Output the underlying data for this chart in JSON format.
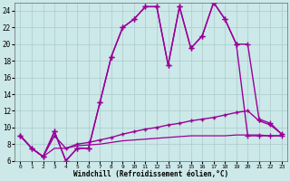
{
  "background_color": "#cce8e8",
  "grid_color": "#aacccc",
  "line_color": "#990099",
  "xlabel": "Windchill (Refroidissement éolien,°C)",
  "xlim": [
    0,
    23
  ],
  "ylim": [
    6,
    25
  ],
  "yticks": [
    6,
    8,
    10,
    12,
    14,
    16,
    18,
    20,
    22,
    24
  ],
  "xticks": [
    0,
    1,
    2,
    3,
    4,
    5,
    6,
    7,
    8,
    9,
    10,
    11,
    12,
    13,
    14,
    15,
    16,
    17,
    18,
    19,
    20,
    21,
    22,
    23
  ],
  "series": [
    {
      "x": [
        0,
        1,
        2,
        3,
        4,
        5,
        6,
        7,
        8,
        9,
        10,
        11,
        12,
        13,
        14,
        15,
        16,
        17,
        18,
        19,
        20,
        21,
        22,
        23
      ],
      "y": [
        9,
        7.5,
        6.5,
        9.5,
        6.0,
        7.5,
        7.5,
        13,
        18.5,
        22,
        23,
        24.5,
        24.5,
        17.5,
        24.5,
        19.5,
        21,
        25,
        23,
        20,
        9,
        9,
        9,
        9
      ],
      "marker": "+",
      "markersize": 4,
      "linewidth": 1.0
    },
    {
      "x": [
        0,
        1,
        2,
        3,
        4,
        5,
        6,
        7,
        8,
        9,
        10,
        11,
        12,
        13,
        14,
        15,
        16,
        17,
        18,
        19,
        20,
        21,
        22,
        23
      ],
      "y": [
        9,
        7.5,
        6.5,
        9.5,
        6.0,
        7.5,
        7.5,
        13,
        18.5,
        22,
        23,
        24.5,
        24.5,
        17.5,
        24.5,
        19.5,
        21,
        25,
        23,
        20,
        20,
        11,
        10.5,
        9.2
      ],
      "marker": "+",
      "markersize": 4,
      "linewidth": 1.0
    },
    {
      "x": [
        0,
        1,
        2,
        3,
        4,
        5,
        6,
        7,
        8,
        9,
        10,
        11,
        12,
        13,
        14,
        15,
        16,
        17,
        18,
        19,
        20,
        21,
        22,
        23
      ],
      "y": [
        9,
        7.5,
        6.5,
        9.0,
        7.5,
        8.0,
        8.2,
        8.5,
        8.8,
        9.2,
        9.5,
        9.8,
        10.0,
        10.3,
        10.5,
        10.8,
        11.0,
        11.2,
        11.5,
        11.8,
        12.0,
        10.8,
        10.3,
        9.2
      ],
      "marker": "+",
      "markersize": 3,
      "linewidth": 1.0
    },
    {
      "x": [
        0,
        1,
        2,
        3,
        4,
        5,
        6,
        7,
        8,
        9,
        10,
        11,
        12,
        13,
        14,
        15,
        16,
        17,
        18,
        19,
        20,
        21,
        22,
        23
      ],
      "y": [
        9,
        7.5,
        6.5,
        7.5,
        7.5,
        7.8,
        7.9,
        8.0,
        8.2,
        8.4,
        8.5,
        8.6,
        8.7,
        8.8,
        8.9,
        9.0,
        9.0,
        9.0,
        9.0,
        9.1,
        9.1,
        9.1,
        9.0,
        9.0
      ],
      "marker": null,
      "markersize": 2,
      "linewidth": 0.9
    }
  ]
}
